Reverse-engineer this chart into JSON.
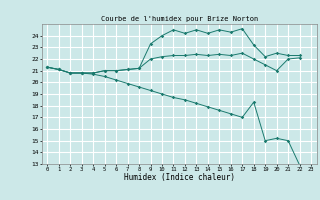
{
  "title": "Courbe de l'humidex pour Brize Norton",
  "xlabel": "Humidex (Indice chaleur)",
  "xlim": [
    -0.5,
    23.5
  ],
  "ylim": [
    13,
    25
  ],
  "yticks": [
    13,
    14,
    15,
    16,
    17,
    18,
    19,
    20,
    21,
    22,
    23,
    24
  ],
  "xticks": [
    0,
    1,
    2,
    3,
    4,
    5,
    6,
    7,
    8,
    9,
    10,
    11,
    12,
    13,
    14,
    15,
    16,
    17,
    18,
    19,
    20,
    21,
    22,
    23
  ],
  "bg_color": "#cce8e8",
  "grid_color": "#ffffff",
  "line_color": "#1a7a6e",
  "curve1_x": [
    0,
    1,
    2,
    3,
    4,
    5,
    6,
    7,
    8,
    9,
    10,
    11,
    12,
    13,
    14,
    15,
    16,
    17,
    18,
    19,
    20,
    21,
    22
  ],
  "curve1_y": [
    21.3,
    21.1,
    20.8,
    20.8,
    20.8,
    21.0,
    21.0,
    21.1,
    21.2,
    23.3,
    24.0,
    24.5,
    24.2,
    24.5,
    24.2,
    24.5,
    24.3,
    24.6,
    23.2,
    22.2,
    22.5,
    22.3,
    22.3
  ],
  "curve2_x": [
    0,
    1,
    2,
    3,
    4,
    5,
    6,
    7,
    8,
    9,
    10,
    11,
    12,
    13,
    14,
    15,
    16,
    17,
    18,
    19,
    20,
    21,
    22
  ],
  "curve2_y": [
    21.3,
    21.1,
    20.8,
    20.8,
    20.8,
    21.0,
    21.0,
    21.1,
    21.2,
    22.0,
    22.2,
    22.3,
    22.3,
    22.4,
    22.3,
    22.4,
    22.3,
    22.5,
    22.0,
    21.5,
    21.0,
    22.0,
    22.1
  ],
  "curve3_x": [
    0,
    1,
    2,
    3,
    4,
    5,
    6,
    7,
    8,
    9,
    10,
    11,
    12,
    13,
    14,
    15,
    16,
    17,
    18,
    19,
    20,
    21,
    22
  ],
  "curve3_y": [
    21.3,
    21.1,
    20.8,
    20.8,
    20.7,
    20.5,
    20.2,
    19.9,
    19.6,
    19.3,
    19.0,
    18.7,
    18.5,
    18.2,
    17.9,
    17.6,
    17.3,
    17.0,
    18.3,
    15.0,
    15.2,
    15.0,
    12.9
  ]
}
